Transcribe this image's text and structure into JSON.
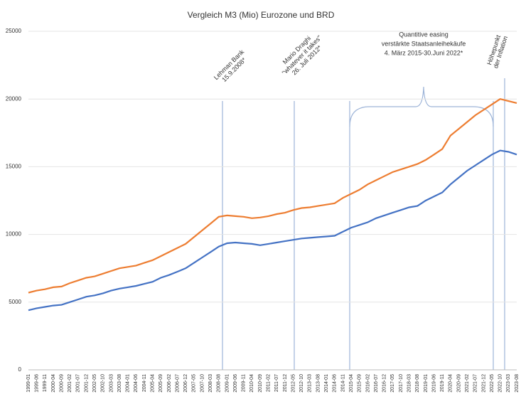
{
  "chart_data": {
    "type": "line",
    "title": "Vergleich M3 (Mio) Eurozone und BRD",
    "categories": [
      "1999-01",
      "1999-06",
      "1999-11",
      "2000-04",
      "2000-09",
      "2001-02",
      "2001-07",
      "2001-12",
      "2002-05",
      "2002-10",
      "2003-03",
      "2003-08",
      "2004-01",
      "2004-06",
      "2004-11",
      "2005-04",
      "2005-09",
      "2006-02",
      "2006-07",
      "2006-12",
      "2007-05",
      "2007-10",
      "2008-03",
      "2008-08",
      "2009-01",
      "2009-06",
      "2009-11",
      "2010-04",
      "2010-09",
      "2011-02",
      "2011-07",
      "2011-12",
      "2012-05",
      "2012-10",
      "2013-03",
      "2013-08",
      "2014-01",
      "2014-06",
      "2014-11",
      "2015-04",
      "2015-09",
      "2016-02",
      "2016-07",
      "2016-12",
      "2017-05",
      "2017-10",
      "2018-03",
      "2018-08",
      "2019-01",
      "2019-06",
      "2019-11",
      "2020-04",
      "2020-09",
      "2021-02",
      "2021-07",
      "2021-12",
      "2022-05",
      "2022-10",
      "2023-03",
      "2023-08"
    ],
    "series": [
      {
        "color": "#ed7d31",
        "values": [
          5700,
          5850,
          5950,
          6100,
          6150,
          6400,
          6600,
          6800,
          6900,
          7100,
          7300,
          7500,
          7600,
          7700,
          7900,
          8100,
          8400,
          8700,
          9000,
          9300,
          9800,
          10300,
          10800,
          11300,
          11400,
          11350,
          11300,
          11200,
          11250,
          11350,
          11500,
          11600,
          11800,
          11950,
          12000,
          12100,
          12200,
          12300,
          12700,
          13000,
          13300,
          13700,
          14000,
          14300,
          14600,
          14800,
          15000,
          15200,
          15500,
          15900,
          16300,
          17300,
          17800,
          18300,
          18800,
          19200,
          19600,
          20000,
          19850,
          19700
        ]
      },
      {
        "color": "#4472c4",
        "values": [
          4400,
          4550,
          4650,
          4750,
          4800,
          5000,
          5200,
          5400,
          5500,
          5650,
          5850,
          6000,
          6100,
          6200,
          6350,
          6500,
          6800,
          7000,
          7250,
          7500,
          7900,
          8300,
          8700,
          9100,
          9350,
          9400,
          9350,
          9300,
          9200,
          9300,
          9400,
          9500,
          9600,
          9700,
          9750,
          9800,
          9850,
          9900,
          10200,
          10500,
          10700,
          10900,
          11200,
          11400,
          11600,
          11800,
          12000,
          12100,
          12500,
          12800,
          13100,
          13700,
          14200,
          14700,
          15100,
          15500,
          15900,
          16200,
          16100,
          15900
        ]
      }
    ],
    "ylim": [
      0,
      25000
    ],
    "yticks": [
      0,
      5000,
      10000,
      15000,
      20000,
      25000
    ],
    "grid": true,
    "annotations": [
      {
        "lines": [
          "Lehman Bank",
          "15.9.2008*"
        ]
      },
      {
        "lines": [
          "Mario Draghi",
          "\"whatever it takes\"",
          "26. Juli 2012*"
        ]
      },
      {
        "lines": [
          "Quantitive easing",
          "verstärkte Staatsanleihekäufe",
          "4. März 2015-30.Juni 2022*"
        ]
      },
      {
        "lines": [
          "Höhepunkt",
          "der Inflation"
        ]
      }
    ]
  }
}
